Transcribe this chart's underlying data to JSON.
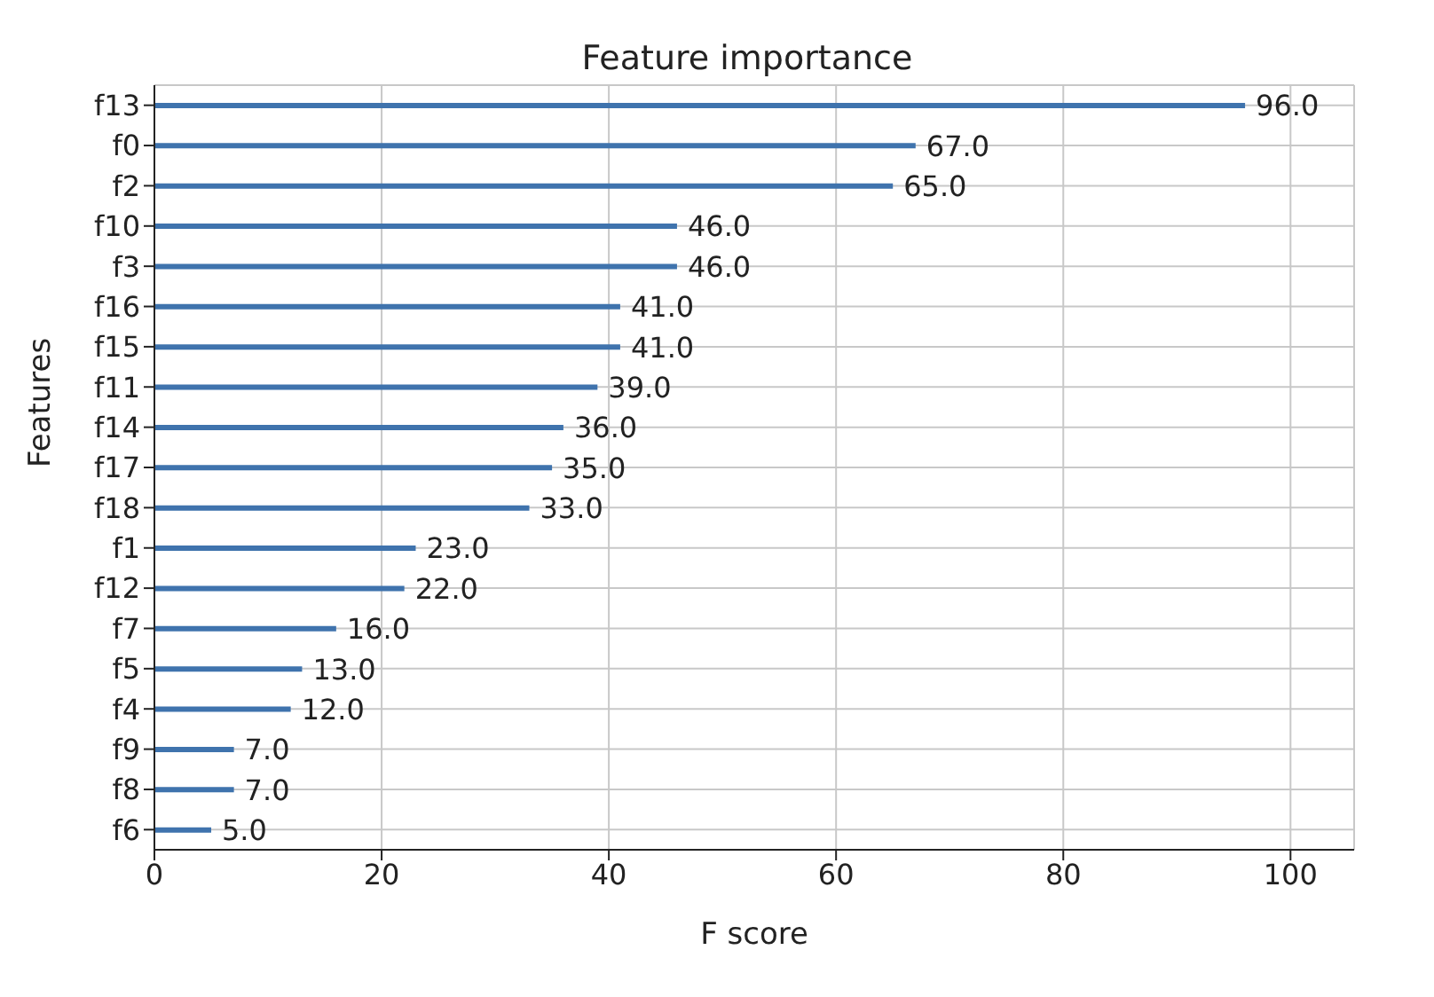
{
  "chart_data": {
    "type": "bar",
    "orientation": "horizontal",
    "title": "Feature importance",
    "xlabel": "F score",
    "ylabel": "Features",
    "categories": [
      "f13",
      "f0",
      "f2",
      "f10",
      "f3",
      "f16",
      "f15",
      "f11",
      "f14",
      "f17",
      "f18",
      "f1",
      "f12",
      "f7",
      "f5",
      "f4",
      "f9",
      "f8",
      "f6"
    ],
    "values": [
      96,
      67,
      65,
      46,
      46,
      41,
      41,
      39,
      36,
      35,
      33,
      23,
      22,
      16,
      13,
      12,
      7,
      7,
      5
    ],
    "value_labels": [
      "96.0",
      "67.0",
      "65.0",
      "46.0",
      "46.0",
      "41.0",
      "41.0",
      "39.0",
      "36.0",
      "35.0",
      "33.0",
      "23.0",
      "22.0",
      "16.0",
      "13.0",
      "12.0",
      "7.0",
      "7.0",
      "5.0"
    ],
    "color": "#3f73ad",
    "xlim": [
      0,
      105.6
    ],
    "xticks": [
      0,
      20,
      40,
      60,
      80,
      100
    ],
    "grid": true
  }
}
